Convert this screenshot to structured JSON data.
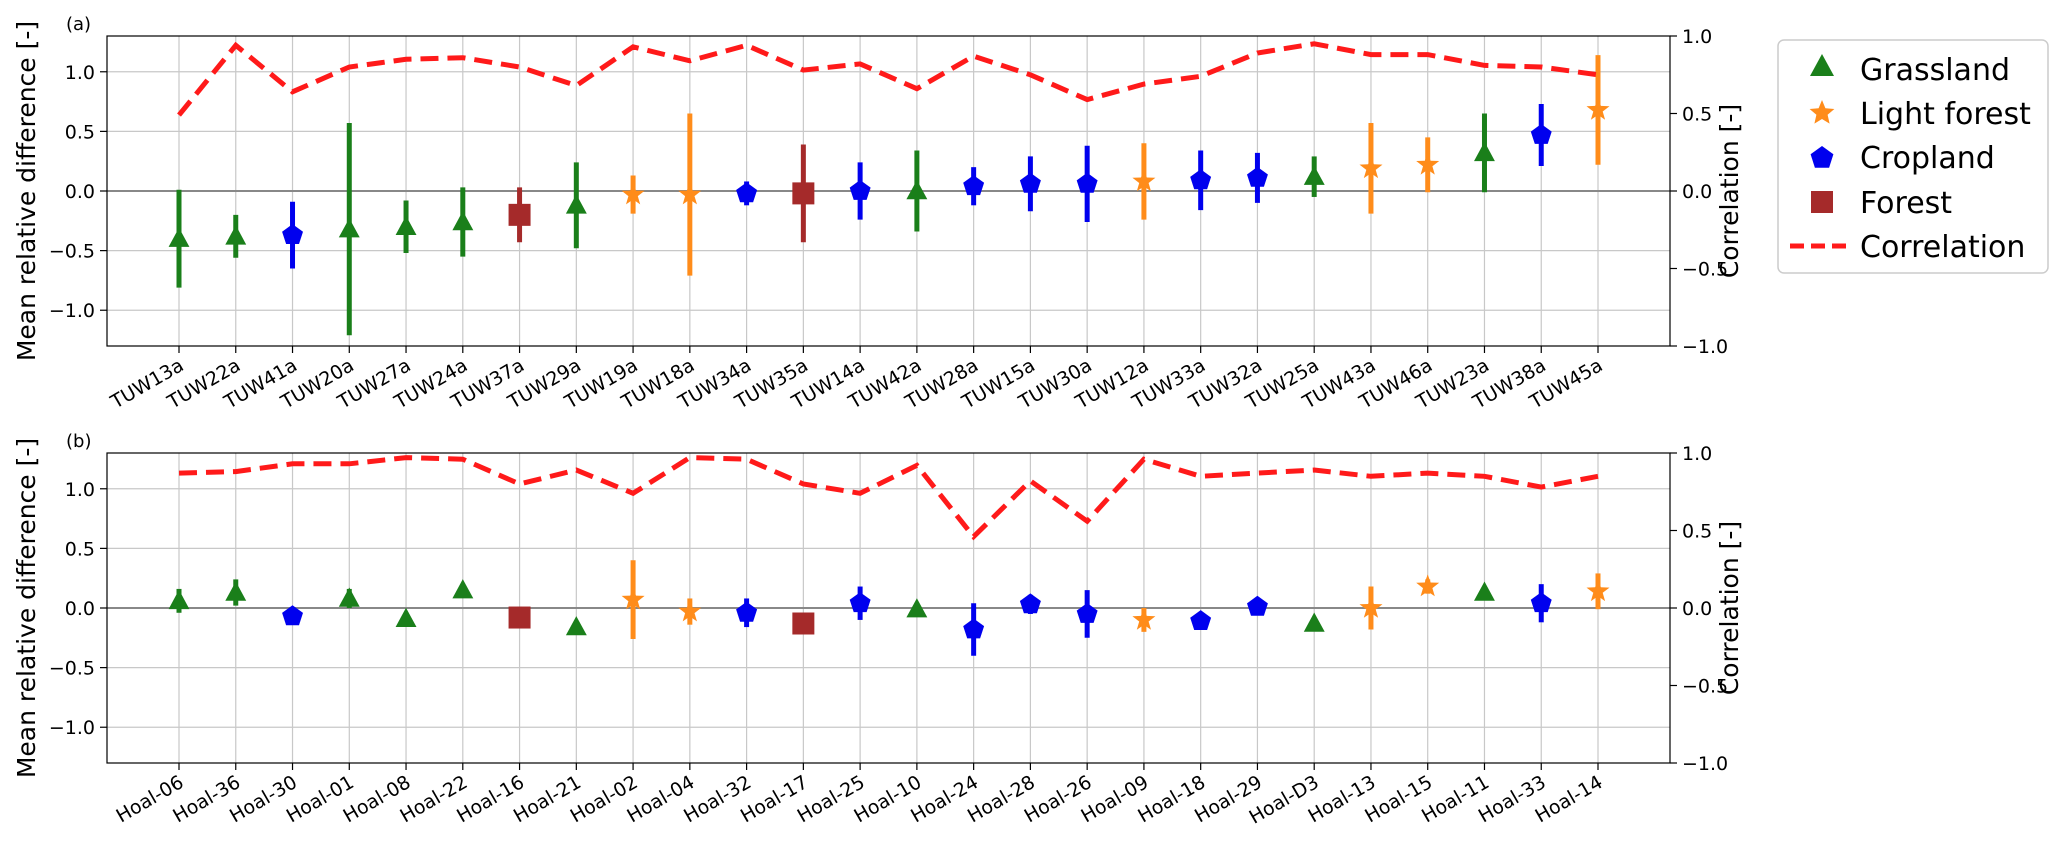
{
  "legend": {
    "items": [
      {
        "key": "grassland",
        "label": "Grassland",
        "marker": "triangle",
        "color": "#1a7f1a"
      },
      {
        "key": "light_forest",
        "label": "Light forest",
        "marker": "star",
        "color": "#ff8c1a"
      },
      {
        "key": "cropland",
        "label": "Cropland",
        "marker": "pentagon",
        "color": "#0000ee"
      },
      {
        "key": "forest",
        "label": "Forest",
        "marker": "square",
        "color": "#a52a2a"
      },
      {
        "key": "correlation",
        "label": "Correlation",
        "marker": "dashed-line",
        "color": "#ff1a1a"
      }
    ]
  },
  "chart_data": [
    {
      "type": "errorbar+line",
      "panel_label": "(a)",
      "ylabel": "Mean  relative  difference [-]",
      "y2label": "Correlation [-]",
      "ylim": [
        -1.3,
        1.3
      ],
      "yticks": [
        -1.0,
        -0.5,
        0.0,
        0.5,
        1.0
      ],
      "ytick_labels": [
        "−1.0",
        "−0.5",
        "0.0",
        "0.5",
        "1.0"
      ],
      "y2lim": [
        -1.0,
        1.0
      ],
      "y2ticks": [
        -1.0,
        -0.5,
        0.0,
        0.5,
        1.0
      ],
      "y2tick_labels": [
        "−1.0",
        "−0.5",
        "0.0",
        "0.5",
        "1.0"
      ],
      "grid": true,
      "categories": [
        "TUW13a",
        "TUW22a",
        "TUW41a",
        "TUW20a",
        "TUW27a",
        "TUW24a",
        "TUW37a",
        "TUW29a",
        "TUW19a",
        "TUW18a",
        "TUW34a",
        "TUW35a",
        "TUW14a",
        "TUW42a",
        "TUW28a",
        "TUW15a",
        "TUW30a",
        "TUW12a",
        "TUW33a",
        "TUW32a",
        "TUW25a",
        "TUW43a",
        "TUW46a",
        "TUW23a",
        "TUW38a",
        "TUW45a"
      ],
      "landcover": [
        "grassland",
        "grassland",
        "cropland",
        "grassland",
        "grassland",
        "grassland",
        "forest",
        "grassland",
        "light_forest",
        "light_forest",
        "cropland",
        "forest",
        "cropland",
        "grassland",
        "cropland",
        "cropland",
        "cropland",
        "light_forest",
        "cropland",
        "cropland",
        "grassland",
        "light_forest",
        "light_forest",
        "grassland",
        "cropland",
        "light_forest"
      ],
      "mean_relative_difference": [
        -0.4,
        -0.38,
        -0.37,
        -0.32,
        -0.3,
        -0.26,
        -0.2,
        -0.12,
        -0.03,
        -0.03,
        -0.02,
        -0.02,
        0.0,
        0.0,
        0.04,
        0.06,
        0.06,
        0.08,
        0.09,
        0.11,
        0.12,
        0.19,
        0.22,
        0.32,
        0.47,
        0.68
      ],
      "std_dev": [
        0.41,
        0.18,
        0.28,
        0.89,
        0.22,
        0.29,
        0.23,
        0.36,
        0.16,
        0.68,
        0.1,
        0.41,
        0.24,
        0.34,
        0.16,
        0.23,
        0.32,
        0.32,
        0.25,
        0.21,
        0.17,
        0.38,
        0.23,
        0.33,
        0.26,
        0.46
      ],
      "correlation": [
        0.49,
        0.94,
        0.64,
        0.8,
        0.85,
        0.86,
        0.8,
        0.68,
        0.93,
        0.84,
        0.94,
        0.78,
        0.82,
        0.66,
        0.87,
        0.75,
        0.59,
        0.69,
        0.74,
        0.89,
        0.95,
        0.88,
        0.88,
        0.81,
        0.8,
        0.75
      ]
    },
    {
      "type": "errorbar+line",
      "panel_label": "(b)",
      "ylabel": "Mean  relative  difference [-]",
      "y2label": "Correlation [-]",
      "ylim": [
        -1.3,
        1.3
      ],
      "yticks": [
        -1.0,
        -0.5,
        0.0,
        0.5,
        1.0
      ],
      "ytick_labels": [
        "−1.0",
        "−0.5",
        "0.0",
        "0.5",
        "1.0"
      ],
      "y2lim": [
        -1.0,
        1.0
      ],
      "y2ticks": [
        -1.0,
        -0.5,
        0.0,
        0.5,
        1.0
      ],
      "y2tick_labels": [
        "−1.0",
        "−0.5",
        "0.0",
        "0.5",
        "1.0"
      ],
      "grid": true,
      "categories": [
        "Hoal-06",
        "Hoal-36",
        "Hoal-30",
        "Hoal-01",
        "Hoal-08",
        "Hoal-22",
        "Hoal-16",
        "Hoal-21",
        "Hoal-02",
        "Hoal-04",
        "Hoal-32",
        "Hoal-17",
        "Hoal-25",
        "Hoal-10",
        "Hoal-24",
        "Hoal-28",
        "Hoal-26",
        "Hoal-09",
        "Hoal-18",
        "Hoal-29",
        "Hoal-D3",
        "Hoal-13",
        "Hoal-15",
        "Hoal-11",
        "Hoal-33",
        "Hoal-14"
      ],
      "landcover": [
        "grassland",
        "grassland",
        "cropland",
        "grassland",
        "grassland",
        "grassland",
        "forest",
        "grassland",
        "light_forest",
        "light_forest",
        "cropland",
        "forest",
        "cropland",
        "grassland",
        "cropland",
        "cropland",
        "cropland",
        "light_forest",
        "cropland",
        "cropland",
        "grassland",
        "light_forest",
        "light_forest",
        "grassland",
        "cropland",
        "light_forest"
      ],
      "mean_relative_difference": [
        0.06,
        0.13,
        -0.07,
        0.08,
        -0.09,
        0.15,
        -0.08,
        -0.16,
        0.07,
        -0.03,
        -0.04,
        -0.13,
        0.04,
        -0.01,
        -0.18,
        0.03,
        -0.05,
        -0.1,
        -0.11,
        0.01,
        -0.13,
        0.0,
        0.18,
        0.13,
        0.04,
        0.14
      ],
      "std_dev": [
        0.1,
        0.11,
        0.0,
        0.08,
        0.0,
        0.05,
        0.09,
        0.0,
        0.33,
        0.11,
        0.12,
        0.07,
        0.14,
        0.0,
        0.22,
        0.08,
        0.2,
        0.1,
        0.0,
        0.05,
        0.0,
        0.18,
        0.06,
        0.0,
        0.16,
        0.15
      ],
      "correlation": [
        0.87,
        0.88,
        0.93,
        0.93,
        0.97,
        0.96,
        0.8,
        0.89,
        0.74,
        0.97,
        0.96,
        0.8,
        0.74,
        0.92,
        0.46,
        0.82,
        0.56,
        0.96,
        0.85,
        0.87,
        0.89,
        0.85,
        0.87,
        0.85,
        0.78,
        0.85
      ]
    }
  ]
}
